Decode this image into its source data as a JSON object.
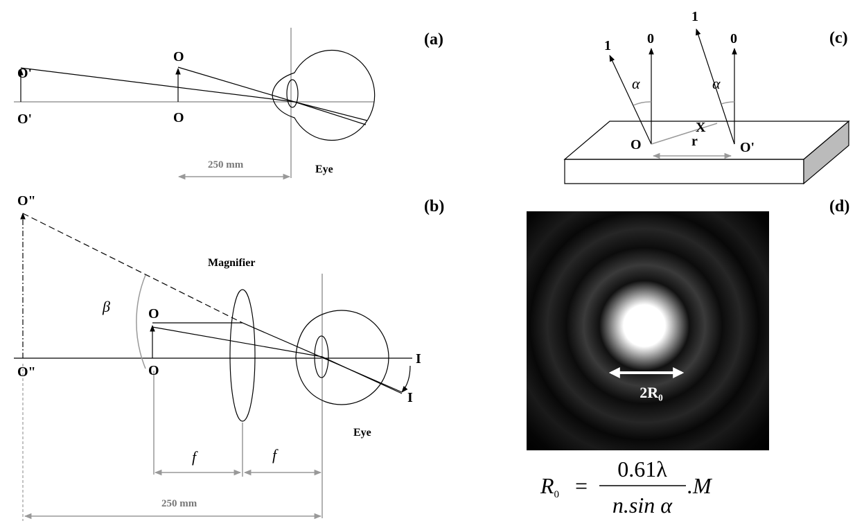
{
  "panel_a": {
    "label": "(a)",
    "image_top": "O'",
    "image_bottom": "O'",
    "object_top": "O",
    "object_bottom": "O",
    "distance": "250 mm",
    "eye": "Eye"
  },
  "panel_b": {
    "label": "(b)",
    "virtual_top": "O\"",
    "virtual_bottom": "O\"",
    "magnifier": "Magnifier",
    "angle": "β",
    "object_top": "O",
    "object_bottom": "O",
    "image_axis": "I",
    "image_retina": "I",
    "focal_left": "f",
    "focal_right": "f",
    "distance": "250 mm",
    "eye": "Eye"
  },
  "panel_c": {
    "label": "(c)",
    "ray_left_1": "1",
    "ray_left_0": "0",
    "ray_right_1": "1",
    "ray_right_0": "0",
    "angle_left": "α",
    "angle_right": "α",
    "point_x": "X",
    "point_o": "O",
    "point_o_prime": "O'",
    "separation": "r"
  },
  "panel_d": {
    "label": "(d)",
    "diameter": "2R₀",
    "formula": {
      "lhs": "R",
      "lhs_sub": "0",
      "equals": "=",
      "numerator": "0.61λ",
      "denominator": "n.sin α",
      "suffix": ".M"
    }
  }
}
